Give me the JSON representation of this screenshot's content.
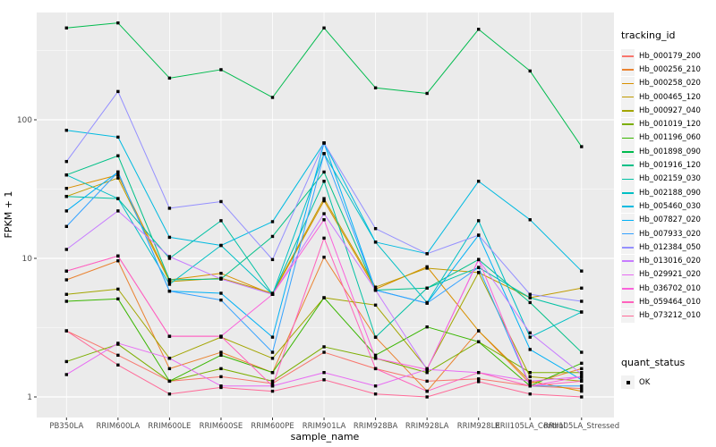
{
  "chart_data": {
    "type": "line",
    "title": "",
    "xlabel": "sample_name",
    "ylabel": "FPKM + 1",
    "x_categories": [
      "PB350LA",
      "RRIM600LA",
      "RRIM600LE",
      "RRIM600SE",
      "RRIM600PE",
      "RRIM901LA",
      "RRIM928BA",
      "RRIM928LA",
      "RRIM928LE",
      "RRII105LA_Control",
      "RRII105LA_Stressed"
    ],
    "y_scale": "log10",
    "y_tick_labels": [
      "1",
      "10",
      "100"
    ],
    "y_tick_values": [
      1,
      10,
      100
    ],
    "y_minor_values": [
      3.1623,
      31.623,
      316.23
    ],
    "ylim": [
      0.8,
      600
    ],
    "grid": "on",
    "legend_position": "right",
    "legend_title": "tracking_id",
    "quant_legend_title": "quant_status",
    "quant_legend_items": [
      "OK"
    ],
    "point_shape": "square",
    "series": [
      {
        "name": "Hb_000179_200",
        "color": "#F8766D",
        "values": [
          3.0,
          2.0,
          1.3,
          1.4,
          1.25,
          2.1,
          1.6,
          1.3,
          1.35,
          1.2,
          1.15
        ]
      },
      {
        "name": "Hb_000256_210",
        "color": "#EA8331",
        "values": [
          7.0,
          9.6,
          1.6,
          2.1,
          1.5,
          10.2,
          2.7,
          1.1,
          3.0,
          1.25,
          1.6
        ]
      },
      {
        "name": "Hb_000258_020",
        "color": "#D89000",
        "values": [
          32,
          40,
          7.0,
          7.8,
          5.5,
          26,
          6.0,
          8.7,
          3.0,
          1.3,
          1.1
        ]
      },
      {
        "name": "Hb_000465_120",
        "color": "#C09B00",
        "values": [
          28,
          38,
          6.8,
          7.2,
          5.6,
          27,
          6.2,
          8.5,
          7.9,
          5.2,
          6.1
        ]
      },
      {
        "name": "Hb_000927_040",
        "color": "#A3A500",
        "values": [
          5.5,
          6.0,
          1.9,
          2.7,
          1.9,
          5.2,
          4.6,
          1.6,
          7.9,
          1.4,
          1.3
        ]
      },
      {
        "name": "Hb_001019_120",
        "color": "#7CAE00",
        "values": [
          1.8,
          2.4,
          1.3,
          1.6,
          1.3,
          2.3,
          1.9,
          1.5,
          2.5,
          1.5,
          1.5
        ]
      },
      {
        "name": "Hb_001196_060",
        "color": "#39B600",
        "values": [
          4.9,
          5.1,
          1.3,
          2.0,
          1.5,
          5.2,
          2.0,
          3.2,
          2.5,
          1.2,
          1.75
        ]
      },
      {
        "name": "Hb_001898_090",
        "color": "#00BB4E",
        "values": [
          460,
          500,
          200,
          230,
          145,
          460,
          170,
          155,
          450,
          225,
          64
        ]
      },
      {
        "name": "Hb_001916_120",
        "color": "#00C087",
        "values": [
          40,
          55,
          7.0,
          7.1,
          14.4,
          42,
          5.9,
          6.1,
          9.8,
          4.8,
          2.1
        ]
      },
      {
        "name": "Hb_002159_030",
        "color": "#00C1A3",
        "values": [
          28,
          27,
          10.0,
          18.7,
          5.5,
          36,
          2.7,
          6.1,
          8.6,
          5.2,
          4.1
        ]
      },
      {
        "name": "Hb_002188_090",
        "color": "#00BFC4",
        "values": [
          40,
          27,
          6.5,
          12.4,
          5.5,
          57,
          13.1,
          4.8,
          18.7,
          2.7,
          4.1
        ]
      },
      {
        "name": "Hb_005460_030",
        "color": "#00BAE0",
        "values": [
          84,
          75,
          14.2,
          12.4,
          18.4,
          68,
          13.1,
          10.8,
          36,
          19,
          8.1
        ]
      },
      {
        "name": "Hb_007827_020",
        "color": "#00B0F6",
        "values": [
          22,
          42,
          5.8,
          5.6,
          2.7,
          68,
          5.9,
          4.75,
          14.7,
          2.2,
          1.33
        ]
      },
      {
        "name": "Hb_007933_020",
        "color": "#35A2FF",
        "values": [
          17,
          42,
          5.8,
          5.0,
          2.1,
          57,
          5.9,
          4.75,
          8.6,
          1.2,
          1.2
        ]
      },
      {
        "name": "Hb_012384_050",
        "color": "#9590FF",
        "values": [
          50,
          160,
          23,
          25.7,
          9.8,
          68,
          16.4,
          10.8,
          14.7,
          5.5,
          4.9
        ]
      },
      {
        "name": "Hb_013016_020",
        "color": "#C77CFF",
        "values": [
          11.6,
          22,
          10.3,
          7.1,
          5.5,
          21,
          5.9,
          1.58,
          9.8,
          2.9,
          1.46
        ]
      },
      {
        "name": "Hb_029921_020",
        "color": "#E76BF3",
        "values": [
          1.45,
          2.44,
          1.9,
          1.2,
          1.2,
          1.5,
          1.2,
          1.58,
          1.5,
          1.3,
          1.4
        ]
      },
      {
        "name": "Hb_036702_010",
        "color": "#FA62DB",
        "values": [
          8.1,
          10.4,
          2.74,
          2.74,
          5.5,
          19,
          1.9,
          1.58,
          9.8,
          1.2,
          1.4
        ]
      },
      {
        "name": "Hb_059464_010",
        "color": "#FF62BC",
        "values": [
          8.1,
          10.4,
          2.74,
          2.74,
          1.2,
          14,
          1.6,
          1.1,
          1.5,
          1.2,
          1.3
        ]
      },
      {
        "name": "Hb_073212_010",
        "color": "#FF6A98",
        "values": [
          3.0,
          1.7,
          1.05,
          1.17,
          1.1,
          1.33,
          1.05,
          1.0,
          1.29,
          1.05,
          1.0
        ]
      }
    ]
  },
  "theme": {
    "panel_bg": "#EBEBEB",
    "grid_color": "#FFFFFF",
    "tick_label_color": "#4D4D4D",
    "axis_title_color": "#000000",
    "point_color": "#000000",
    "legend_key_bg": "#F2F2F2"
  }
}
